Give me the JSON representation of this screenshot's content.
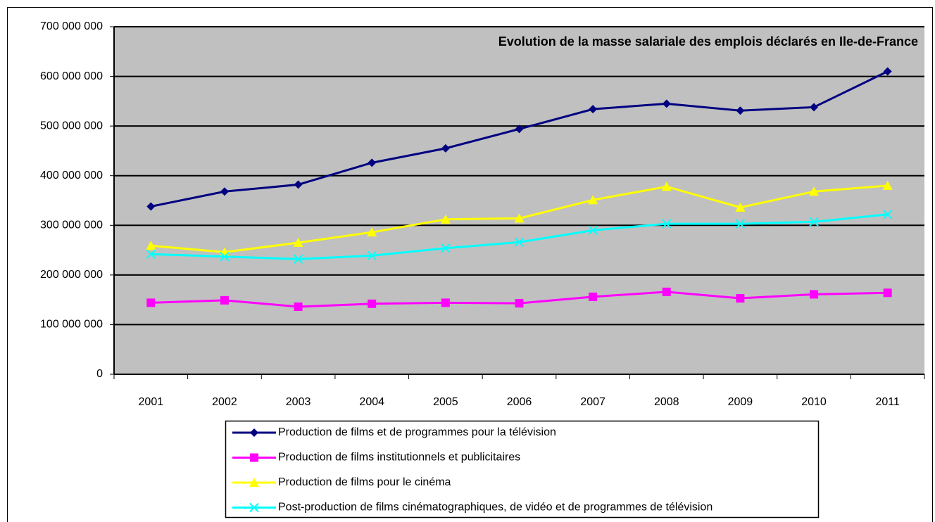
{
  "chart_data": {
    "type": "line",
    "title": "Evolution de la masse salariale des emplois déclarés en Ile-de-France",
    "categories": [
      "2001",
      "2002",
      "2003",
      "2004",
      "2005",
      "2006",
      "2007",
      "2008",
      "2009",
      "2010",
      "2011"
    ],
    "series": [
      {
        "name": "Production de films et de programmes pour la télévision",
        "color": "#000080",
        "marker": "diamond",
        "values": [
          338000000,
          368000000,
          382000000,
          426000000,
          455000000,
          494000000,
          534000000,
          545000000,
          531000000,
          538000000,
          610000000
        ]
      },
      {
        "name": "Production de films institutionnels et publicitaires",
        "color": "#ff00ff",
        "marker": "square",
        "values": [
          144000000,
          149000000,
          136000000,
          142000000,
          144000000,
          143000000,
          156000000,
          166000000,
          153000000,
          161000000,
          164000000
        ]
      },
      {
        "name": "Production de films pour le cinéma",
        "color": "#ffff00",
        "marker": "triangle",
        "values": [
          259000000,
          246000000,
          265000000,
          286000000,
          312000000,
          314000000,
          351000000,
          378000000,
          336000000,
          368000000,
          380000000
        ]
      },
      {
        "name": "Post-production de films cinématographiques, de vidéo et de programmes de télévision",
        "color": "#00ffff",
        "marker": "x",
        "values": [
          242000000,
          237000000,
          232000000,
          239000000,
          254000000,
          266000000,
          290000000,
          303000000,
          303000000,
          307000000,
          322000000
        ]
      }
    ],
    "ylim": [
      0,
      700000000
    ],
    "yticks": [
      0,
      {
        "value": 100000000,
        "label": "100 000 000"
      },
      {
        "value": 200000000,
        "label": "200 000 000"
      },
      {
        "value": 300000000,
        "label": "300 000 000"
      },
      {
        "value": 400000000,
        "label": "400 000 000"
      },
      {
        "value": 500000000,
        "label": "500 000 000"
      },
      {
        "value": 600000000,
        "label": "600 000 000"
      },
      {
        "value": 700000000,
        "label": "700 000 000"
      }
    ],
    "grid": true,
    "legend": "bottom"
  }
}
